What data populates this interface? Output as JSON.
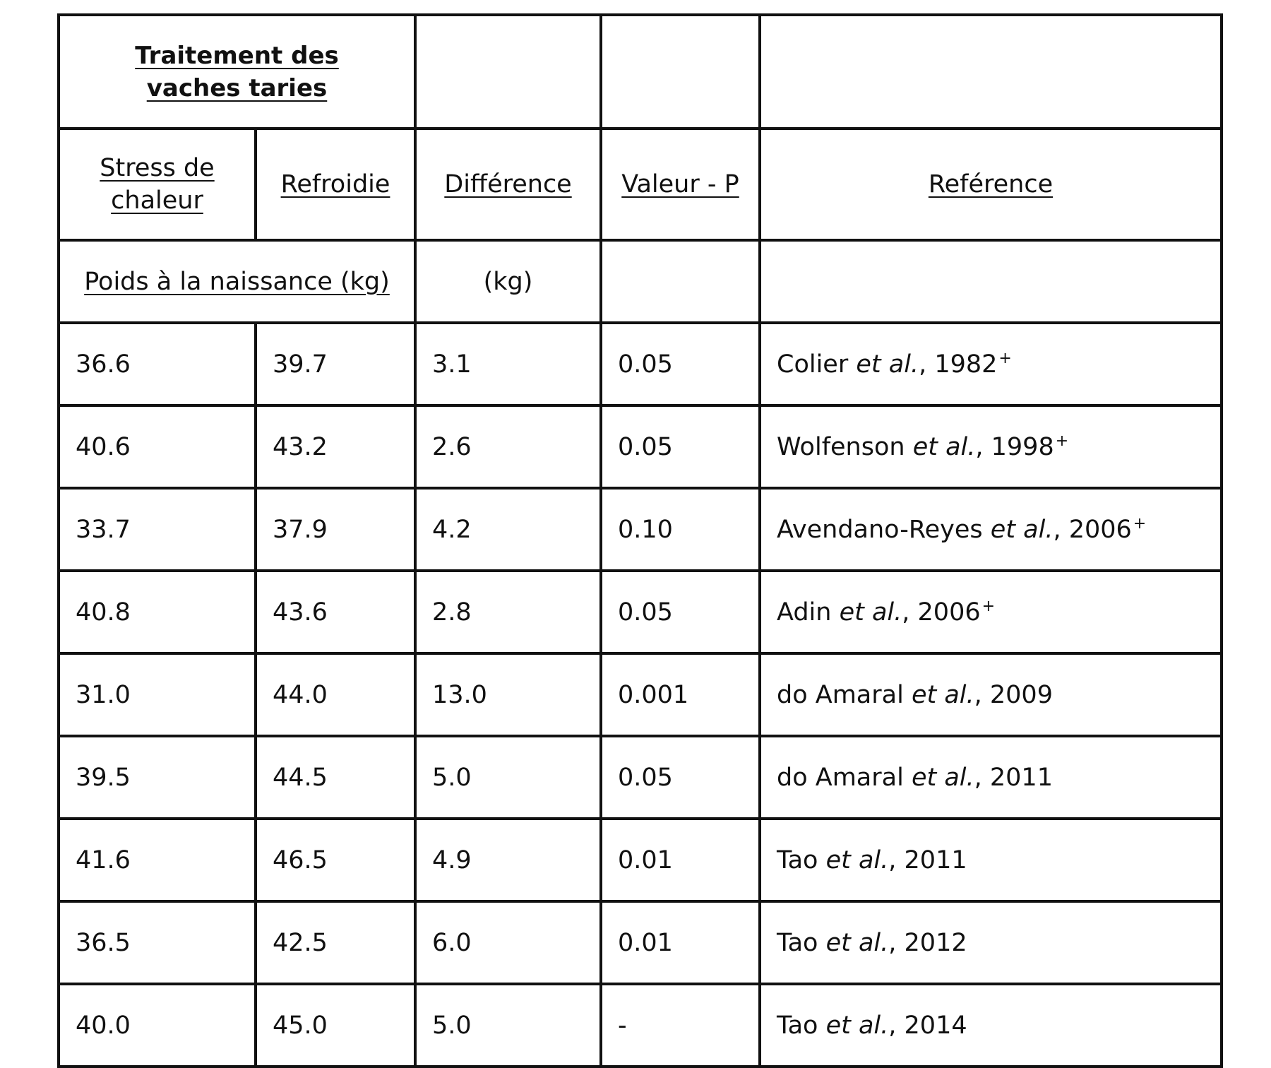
{
  "table": {
    "header": {
      "treatment_title_line1": "Traitement des",
      "treatment_title_line2": "vaches taries",
      "col_heat_stress_line1": "Stress de",
      "col_heat_stress_line2": "chaleur",
      "col_cooled": "Refroidie",
      "col_difference": "Différence",
      "col_p_value": "Valeur - P",
      "col_reference": "Reférence",
      "birth_weight": "Poids à la naissance (kg)",
      "difference_unit": "(kg)"
    },
    "rows": [
      {
        "heat_stress": "36.6",
        "cooled": "39.7",
        "difference": "3.1",
        "p_value": "0.05",
        "ref_author": "Colier",
        "ref_etal": "et al.",
        "ref_year": ", 1982",
        "ref_mark": "+"
      },
      {
        "heat_stress": "40.6",
        "cooled": "43.2",
        "difference": "2.6",
        "p_value": "0.05",
        "ref_author": "Wolfenson",
        "ref_etal": "et al.",
        "ref_year": ", 1998",
        "ref_mark": "+"
      },
      {
        "heat_stress": "33.7",
        "cooled": "37.9",
        "difference": "4.2",
        "p_value": "0.10",
        "ref_author": "Avendano-Reyes",
        "ref_etal": "et al.",
        "ref_year": ", 2006",
        "ref_mark": "+"
      },
      {
        "heat_stress": "40.8",
        "cooled": "43.6",
        "difference": "2.8",
        "p_value": "0.05",
        "ref_author": "Adin",
        "ref_etal": "et al.",
        "ref_year": ", 2006",
        "ref_mark": "+"
      },
      {
        "heat_stress": "31.0",
        "cooled": "44.0",
        "difference": "13.0",
        "p_value": "0.001",
        "ref_author": "do Amaral",
        "ref_etal": "et al.",
        "ref_year": ", 2009",
        "ref_mark": ""
      },
      {
        "heat_stress": "39.5",
        "cooled": "44.5",
        "difference": "5.0",
        "p_value": "0.05",
        "ref_author": "do Amaral",
        "ref_etal": "et al.",
        "ref_year": ", 2011",
        "ref_mark": ""
      },
      {
        "heat_stress": "41.6",
        "cooled": "46.5",
        "difference": "4.9",
        "p_value": "0.01",
        "ref_author": "Tao",
        "ref_etal": "et al.",
        "ref_year": ", 2011",
        "ref_mark": ""
      },
      {
        "heat_stress": "36.5",
        "cooled": "42.5",
        "difference": "6.0",
        "p_value": "0.01",
        "ref_author": "Tao",
        "ref_etal": "et al.",
        "ref_year": ", 2012",
        "ref_mark": ""
      },
      {
        "heat_stress": "40.0",
        "cooled": "45.0",
        "difference": "5.0",
        "p_value": "-",
        "ref_author": "Tao",
        "ref_etal": "et al.",
        "ref_year": ", 2014",
        "ref_mark": ""
      }
    ]
  }
}
